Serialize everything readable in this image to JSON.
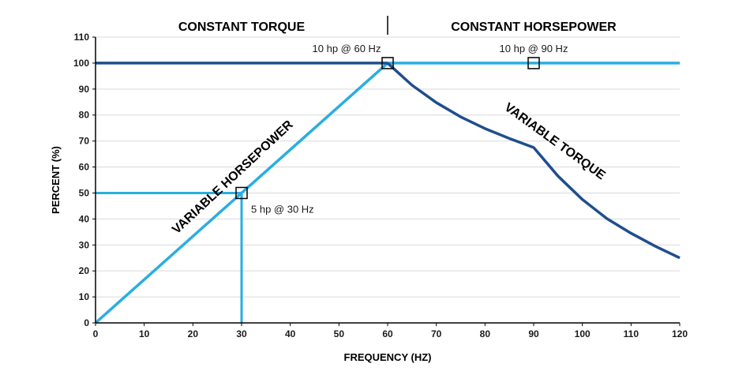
{
  "chart_data": {
    "type": "line",
    "xlabel": "FREQUENCY (HZ)",
    "ylabel": "PERCENT (%)",
    "xlim": [
      0,
      120
    ],
    "ylim": [
      0,
      110
    ],
    "xticks": [
      0,
      10,
      20,
      30,
      40,
      50,
      60,
      70,
      80,
      90,
      100,
      110,
      120
    ],
    "yticks": [
      0,
      10,
      20,
      30,
      40,
      50,
      60,
      70,
      80,
      90,
      100,
      110
    ],
    "grid": "horizontal",
    "regions": [
      "CONSTANT TORQUE",
      "CONSTANT HORSEPOWER"
    ],
    "region_divider_x": 60,
    "colors": {
      "dark_blue": "#1f4e8c",
      "light_blue": "#29aee0",
      "grid": "#d9d9d9",
      "marker": "#000000"
    },
    "series": [
      {
        "label": "VARIABLE HORSEPOWER",
        "color": "#29aee0",
        "x": [
          0,
          60,
          120
        ],
        "y": [
          0,
          100,
          100
        ]
      },
      {
        "label": "",
        "color": "#1f4e8c",
        "x": [
          0,
          60
        ],
        "y": [
          100,
          100
        ]
      },
      {
        "label": "VARIABLE TORQUE",
        "color": "#1f4e8c",
        "x": [
          60,
          65,
          70,
          75,
          80,
          85,
          90,
          95,
          100,
          105,
          110,
          115,
          120
        ],
        "y": [
          100,
          91.5,
          84.8,
          79.3,
          74.8,
          71.0,
          67.5,
          56.5,
          47.5,
          40.2,
          34.5,
          29.5,
          25.0
        ]
      }
    ],
    "reference_lines": [
      {
        "color": "#29aee0",
        "x": [
          0,
          30
        ],
        "y": [
          50,
          50
        ]
      },
      {
        "color": "#29aee0",
        "x": [
          30,
          30
        ],
        "y": [
          0,
          50
        ]
      }
    ],
    "annotations": [
      {
        "text": "10 hp @ 60 Hz",
        "x": 60,
        "y": 100
      },
      {
        "text": "10 hp @ 90 Hz",
        "x": 90,
        "y": 100
      },
      {
        "text": "5 hp @ 30 Hz",
        "x": 30,
        "y": 50
      }
    ]
  }
}
